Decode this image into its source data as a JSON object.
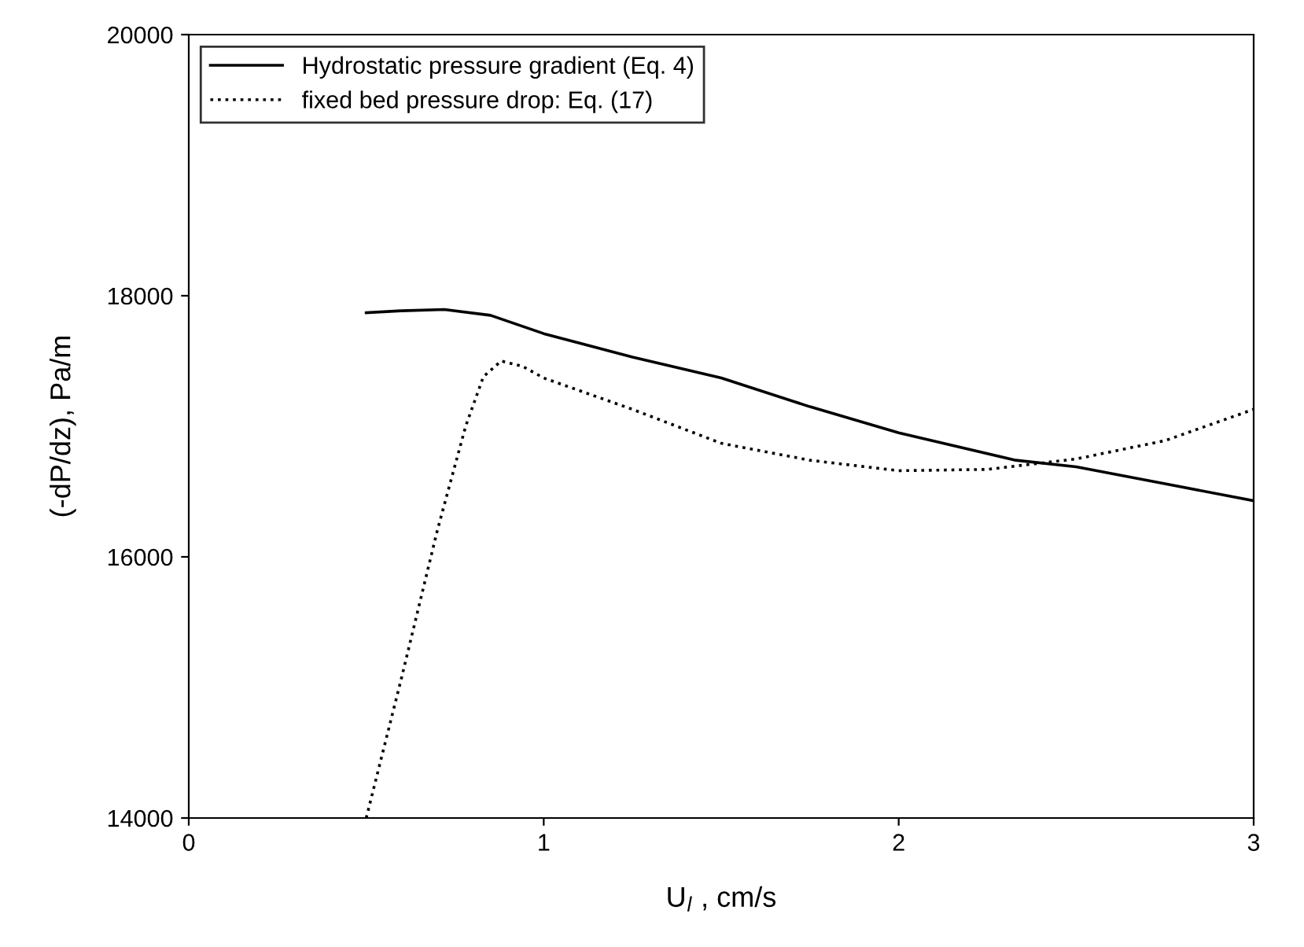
{
  "chart_data": {
    "type": "line",
    "xlabel": "U$_{l}$ , cm/s",
    "ylabel": "(-dP/dz), Pa/m",
    "xlim": [
      0,
      3
    ],
    "ylim": [
      14000,
      20000
    ],
    "xticks": [
      0,
      1,
      2,
      3
    ],
    "yticks": [
      14000,
      16000,
      18000,
      20000
    ],
    "grid": false,
    "legend": "top left",
    "series": [
      {
        "name": "Hydrostatic pressure gradient (Eq. 4)",
        "color": "#000000",
        "line_style": "solid",
        "x": [
          0.5,
          0.6,
          0.72,
          0.85,
          1.0,
          1.25,
          1.5,
          1.75,
          2.0,
          2.33,
          2.5,
          2.75,
          3.0
        ],
        "values": [
          17870,
          17885,
          17895,
          17850,
          17710,
          17530,
          17370,
          17150,
          16950,
          16740,
          16690,
          16560,
          16430
        ]
      },
      {
        "name": "fixed bed pressure drop: Eq. (17)",
        "color": "#000000",
        "line_style": "dotted",
        "x": [
          0.5,
          0.6,
          0.7,
          0.78,
          0.83,
          0.88,
          0.94,
          1.0,
          1.25,
          1.5,
          1.75,
          2.0,
          2.25,
          2.5,
          2.75,
          3.0
        ],
        "values": [
          14000,
          15080,
          16200,
          17000,
          17380,
          17500,
          17460,
          17370,
          17130,
          16870,
          16740,
          16660,
          16670,
          16750,
          16890,
          17130
        ]
      }
    ]
  }
}
